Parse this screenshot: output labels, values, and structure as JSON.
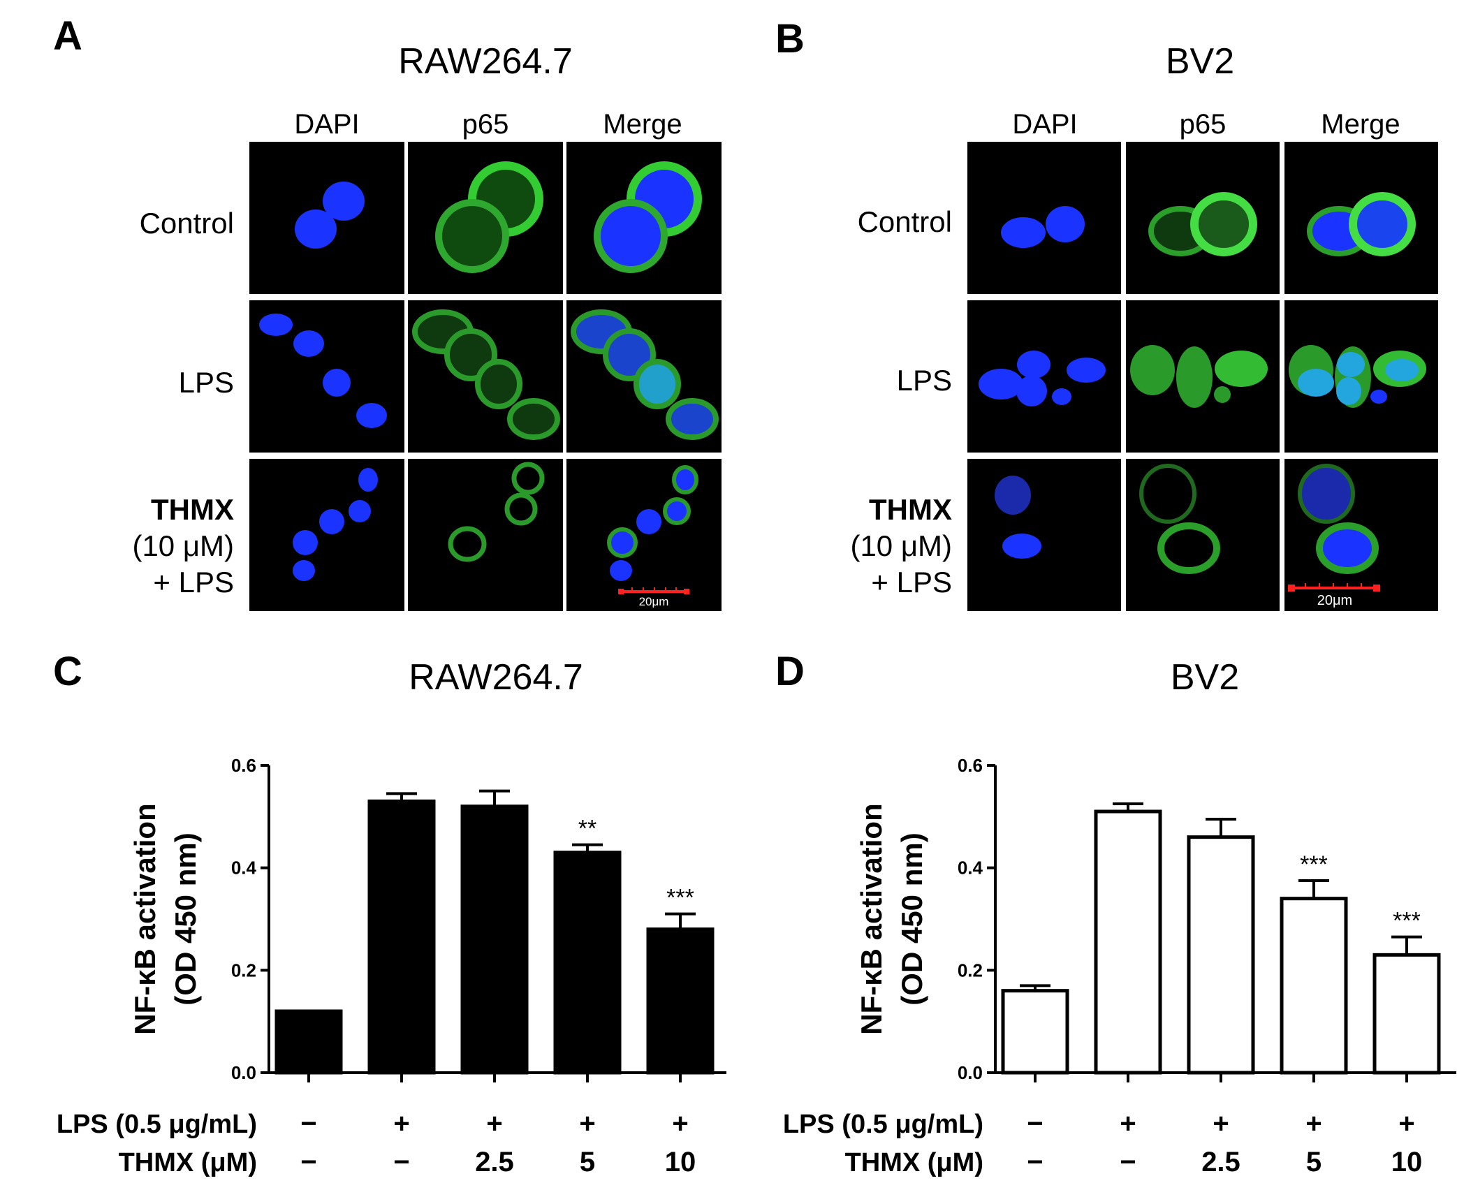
{
  "panels": {
    "A": {
      "letter": "A",
      "title": "RAW264.7",
      "scale": "20μm"
    },
    "B": {
      "letter": "B",
      "title": "BV2",
      "scale": "20μm"
    },
    "C": {
      "letter": "C",
      "title": "RAW264.7"
    },
    "D": {
      "letter": "D",
      "title": "BV2"
    }
  },
  "columns": [
    "DAPI",
    "p65",
    "Merge"
  ],
  "rows": {
    "control": "Control",
    "lps": "LPS",
    "thmx_bold": "THMX",
    "thmx_dose": "(10 μM)",
    "thmx_lps": "+ LPS"
  },
  "colors": {
    "dapi": "#1a33ff",
    "p65": "#33cc33",
    "scalebar": "#ff2020",
    "bar_fill_C": "#000000",
    "bar_fill_D": "#ffffff"
  },
  "chart_data": [
    {
      "type": "bar",
      "title": "RAW264.7",
      "ylabel_line1": "NF-κB activation",
      "ylabel_line2": "(OD 450 nm)",
      "ylim": [
        0,
        0.6
      ],
      "yticks": [
        "0.0",
        "0.2",
        "0.4",
        "0.6"
      ],
      "values": [
        0.12,
        0.53,
        0.52,
        0.43,
        0.28
      ],
      "errors": [
        0.0,
        0.015,
        0.03,
        0.015,
        0.03
      ],
      "significance": [
        "",
        "",
        "",
        "**",
        "***"
      ],
      "fill": "#000000",
      "row1_label": "LPS (0.5 μg/mL)",
      "row1_values": [
        "−",
        "+",
        "+",
        "+",
        "+"
      ],
      "row2_label": "THMX (μM)",
      "row2_values": [
        "−",
        "−",
        "2.5",
        "5",
        "10"
      ]
    },
    {
      "type": "bar",
      "title": "BV2",
      "ylabel_line1": "NF-κB activation",
      "ylabel_line2": "(OD 450 nm)",
      "ylim": [
        0,
        0.6
      ],
      "yticks": [
        "0.0",
        "0.2",
        "0.4",
        "0.6"
      ],
      "values": [
        0.16,
        0.51,
        0.46,
        0.34,
        0.23
      ],
      "errors": [
        0.01,
        0.015,
        0.035,
        0.035,
        0.035
      ],
      "significance": [
        "",
        "",
        "",
        "***",
        "***"
      ],
      "fill": "#ffffff",
      "row1_label": "LPS (0.5 μg/mL)",
      "row1_values": [
        "−",
        "+",
        "+",
        "+",
        "+"
      ],
      "row2_label": "THMX (μM)",
      "row2_values": [
        "−",
        "−",
        "2.5",
        "5",
        "10"
      ]
    }
  ]
}
